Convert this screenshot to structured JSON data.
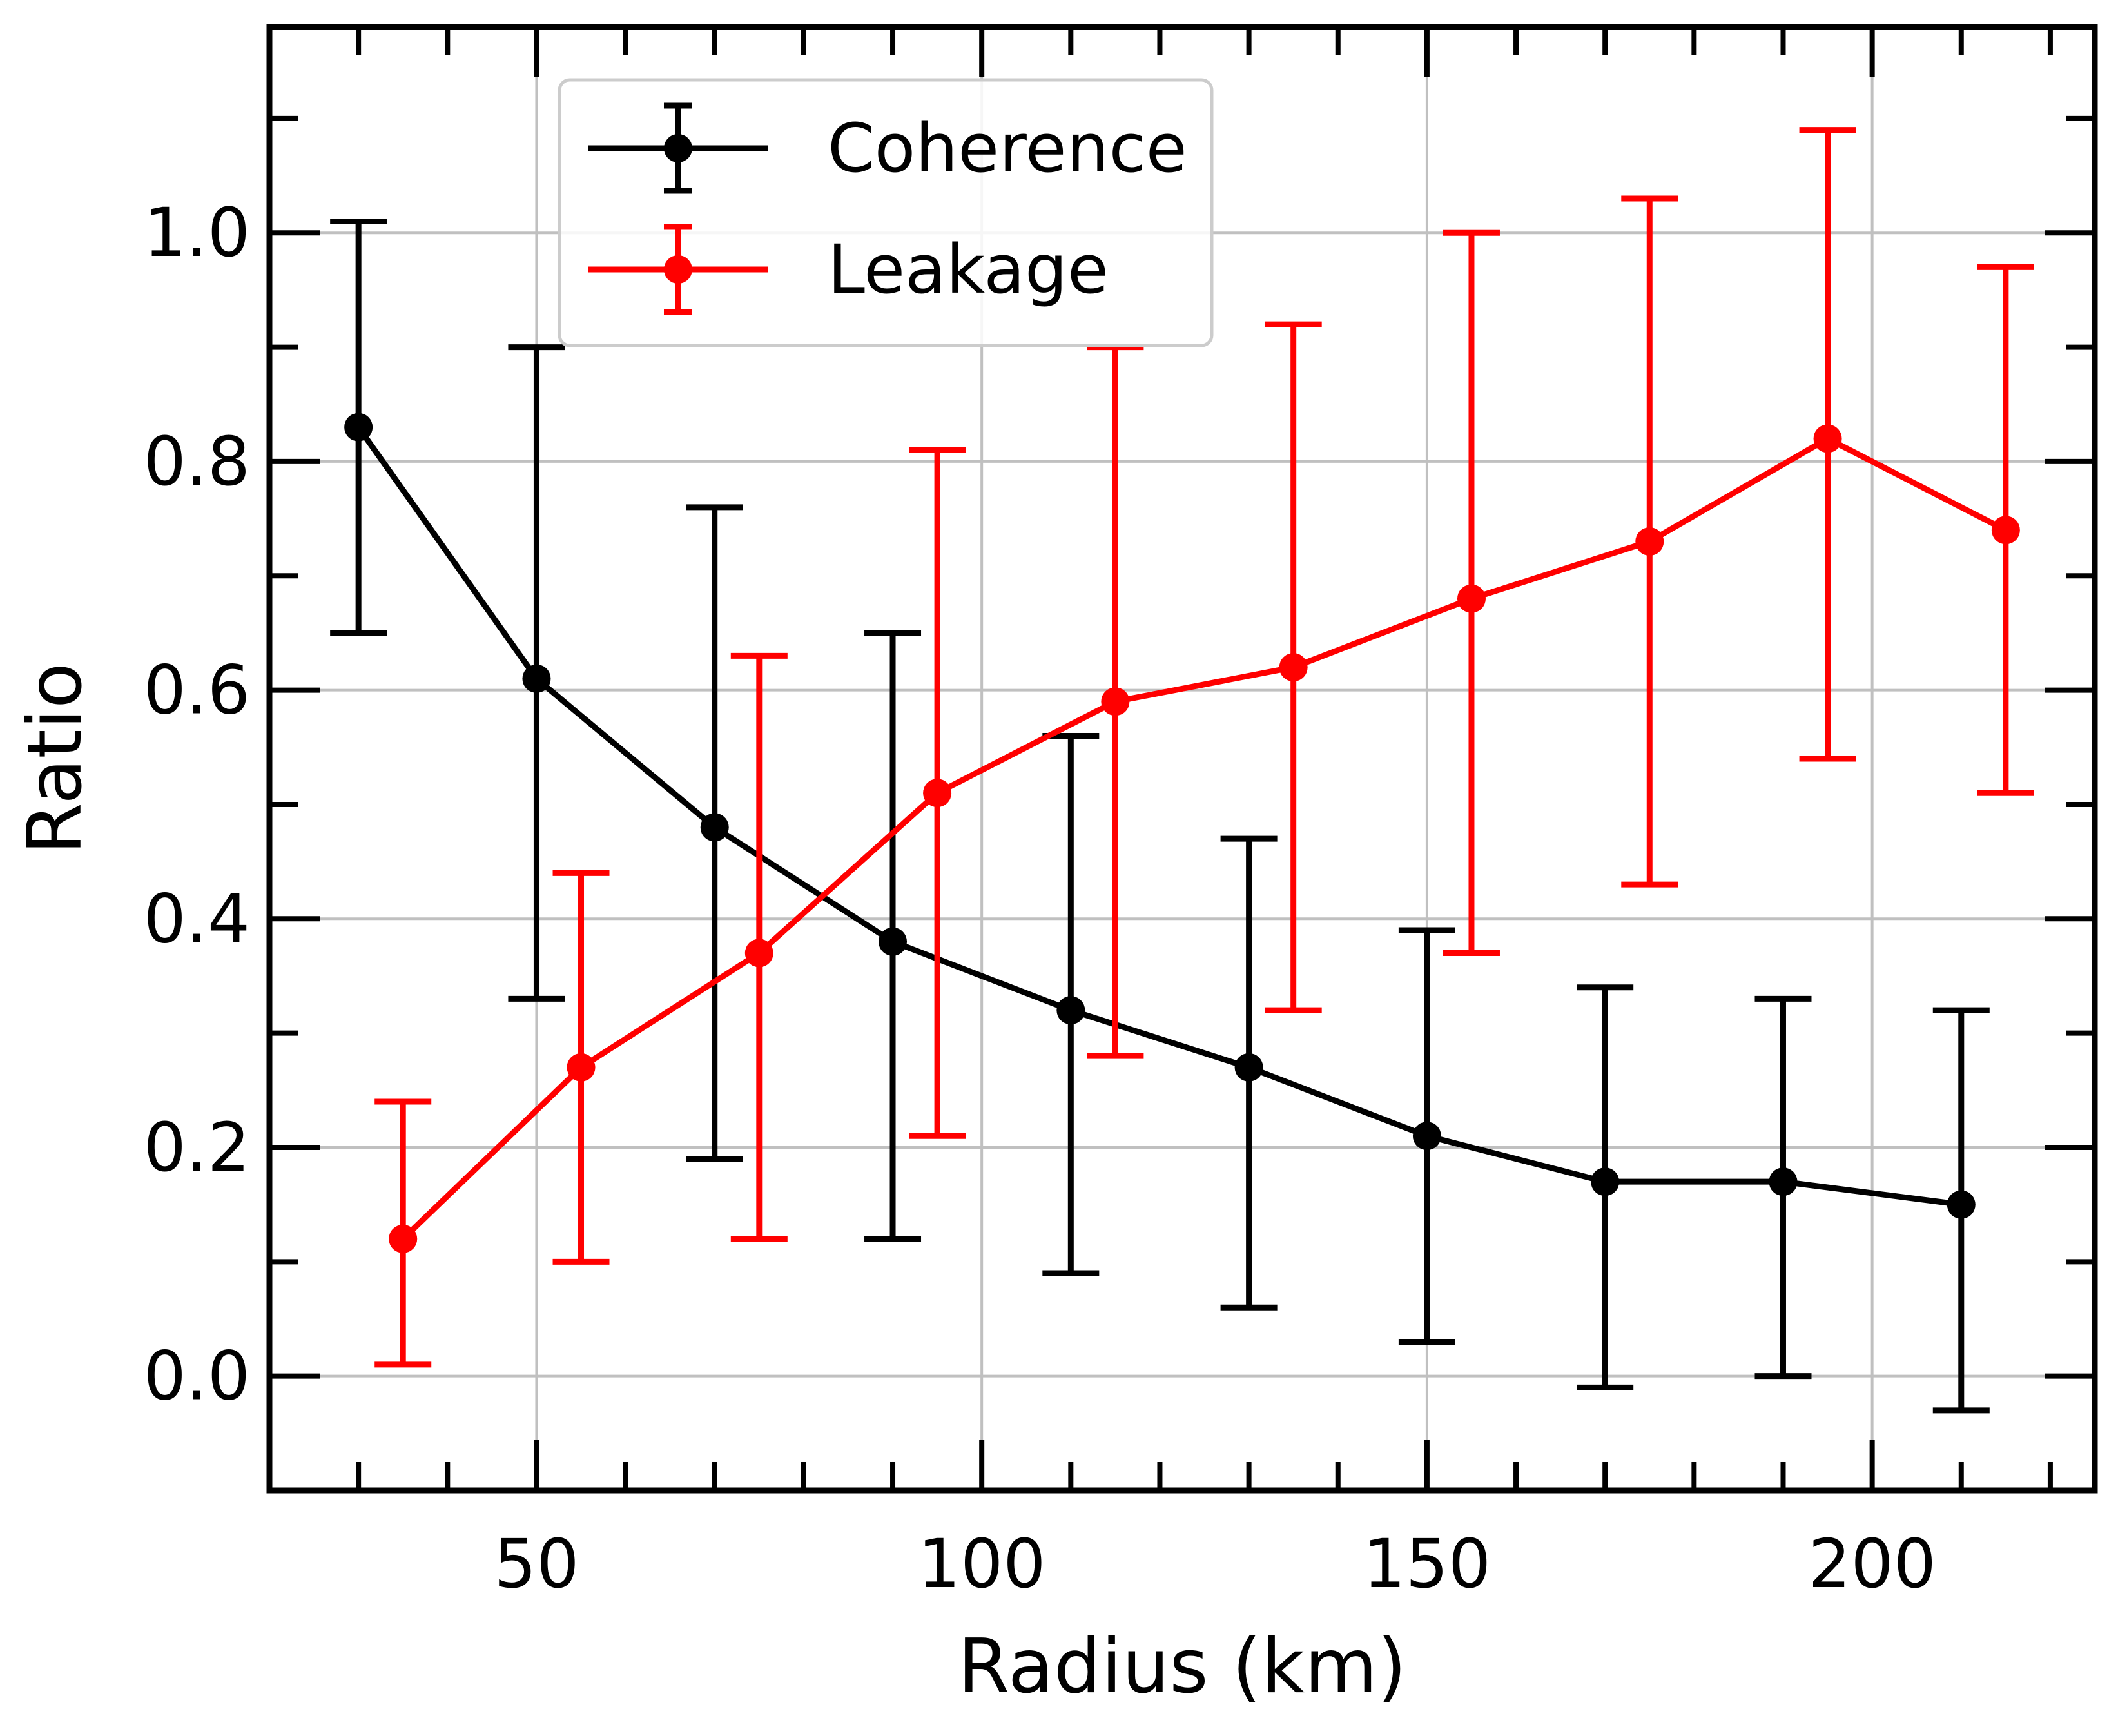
{
  "chart_data": {
    "type": "line",
    "title": "",
    "xlabel": "Radius (km)",
    "ylabel": "Ratio",
    "xlim": [
      20,
      225
    ],
    "ylim": [
      -0.1,
      1.18
    ],
    "xticks": [
      50,
      100,
      150,
      200
    ],
    "xtick_labels": [
      "50",
      "100",
      "150",
      "200"
    ],
    "xminor": [
      30,
      40,
      50,
      60,
      70,
      80,
      90,
      100,
      110,
      120,
      130,
      140,
      150,
      160,
      170,
      180,
      190,
      200,
      210,
      220
    ],
    "yticks": [
      0.0,
      0.2,
      0.4,
      0.6,
      0.8,
      1.0
    ],
    "ytick_labels": [
      "0.0",
      "0.2",
      "0.4",
      "0.6",
      "0.8",
      "1.0"
    ],
    "yminor": [
      0.0,
      0.1,
      0.2,
      0.3,
      0.4,
      0.5,
      0.6,
      0.7,
      0.8,
      0.9,
      1.0,
      1.1
    ],
    "grid": true,
    "legend_position": "top-left",
    "series": [
      {
        "name": "Coherence",
        "color": "#000000",
        "x": [
          30,
          50,
          70,
          90,
          110,
          130,
          150,
          170,
          190,
          210
        ],
        "y": [
          0.83,
          0.61,
          0.48,
          0.38,
          0.32,
          0.27,
          0.21,
          0.17,
          0.17,
          0.15
        ],
        "yerr_low": [
          0.65,
          0.33,
          0.19,
          0.12,
          0.09,
          0.06,
          0.03,
          -0.01,
          0.0,
          -0.03
        ],
        "yerr_high": [
          1.01,
          0.9,
          0.76,
          0.65,
          0.56,
          0.47,
          0.39,
          0.34,
          0.33,
          0.32
        ]
      },
      {
        "name": "Leakage",
        "color": "#ff0000",
        "x": [
          35,
          55,
          75,
          95,
          115,
          135,
          155,
          175,
          195,
          215
        ],
        "y": [
          0.12,
          0.27,
          0.37,
          0.51,
          0.59,
          0.62,
          0.68,
          0.73,
          0.82,
          0.74
        ],
        "yerr_low": [
          0.01,
          0.1,
          0.12,
          0.21,
          0.28,
          0.32,
          0.37,
          0.43,
          0.54,
          0.51
        ],
        "yerr_high": [
          0.24,
          0.44,
          0.63,
          0.81,
          0.9,
          0.92,
          1.0,
          1.03,
          1.09,
          0.97
        ]
      }
    ]
  }
}
